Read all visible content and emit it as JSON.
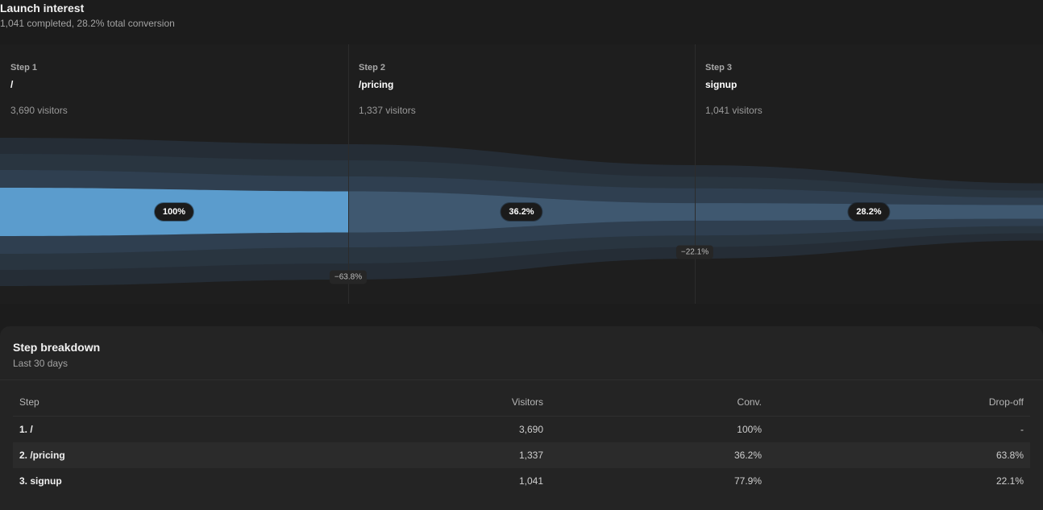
{
  "header": {
    "title": "Launch interest",
    "subtitle": "1,041 completed, 28.2% total conversion"
  },
  "funnel": {
    "steps": [
      {
        "num": "Step 1",
        "path": "/",
        "visitors": "3,690 visitors",
        "pct": "100%",
        "fraction": 1.0
      },
      {
        "num": "Step 2",
        "path": "/pricing",
        "visitors": "1,337 visitors",
        "pct": "36.2%",
        "fraction": 0.362
      },
      {
        "num": "Step 3",
        "path": "signup",
        "visitors": "1,041 visitors",
        "pct": "28.2%",
        "fraction": 0.282
      }
    ],
    "dropoffs": [
      "−63.8%",
      "−22.1%"
    ],
    "colors": {
      "active": "#5b9ccd",
      "inactive": "#3f5870",
      "bands": [
        "#2f3f50",
        "#293540",
        "#252d36"
      ]
    }
  },
  "breakdown": {
    "title": "Step breakdown",
    "subtitle": "Last 30 days",
    "columns": {
      "step": "Step",
      "visitors": "Visitors",
      "conv": "Conv.",
      "drop": "Drop-off"
    },
    "rows": [
      {
        "step": "1. /",
        "visitors": "3,690",
        "conv": "100%",
        "drop": "-"
      },
      {
        "step": "2. /pricing",
        "visitors": "1,337",
        "conv": "36.2%",
        "drop": "63.8%"
      },
      {
        "step": "3. signup",
        "visitors": "1,041",
        "conv": "77.9%",
        "drop": "22.1%"
      }
    ]
  }
}
